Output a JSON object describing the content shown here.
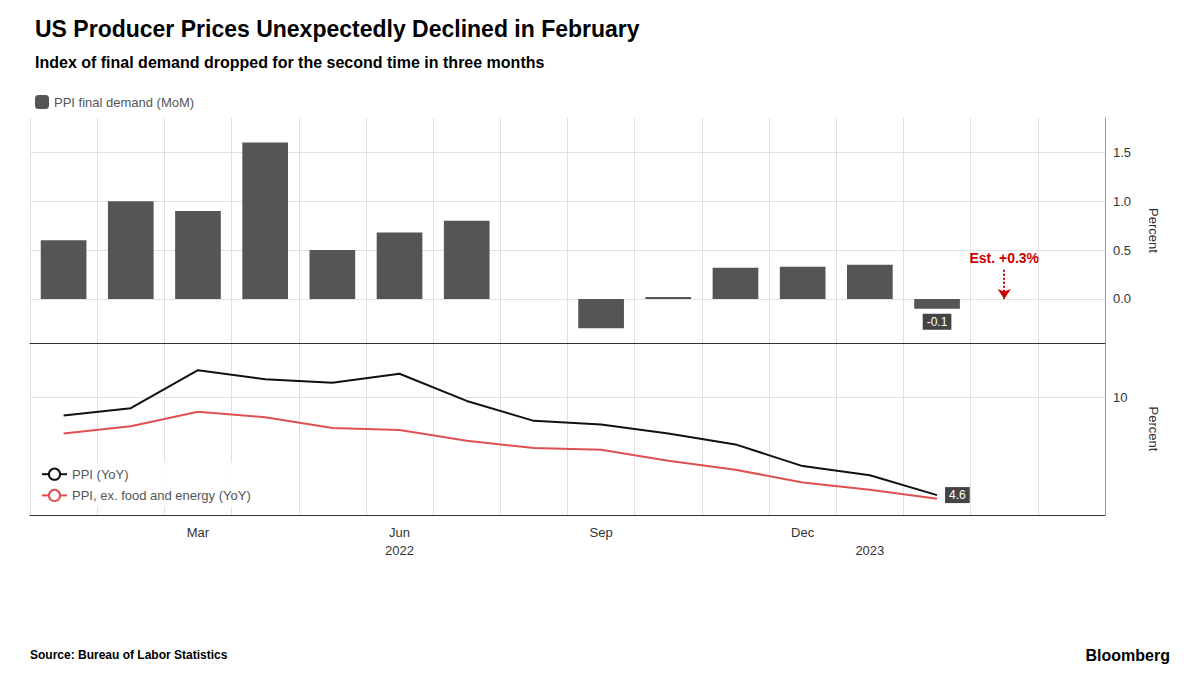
{
  "chart_data": [
    {
      "type": "bar",
      "title": "US Producer Prices Unexpectedly Declined in February",
      "subtitle": "Index of final demand dropped for the second time in three months",
      "categories": [
        null,
        null,
        "Mar",
        null,
        null,
        "Jun",
        null,
        null,
        "Sep",
        null,
        null,
        "Dec",
        null,
        null
      ],
      "series": [
        {
          "name": "PPI final demand (MoM)",
          "color": "#555555",
          "values": [
            0.6,
            1.0,
            0.9,
            1.6,
            0.5,
            0.68,
            0.8,
            0.0,
            -0.3,
            0.02,
            0.32,
            0.33,
            0.35,
            -0.1
          ],
          "end_label": "-0.1",
          "end_label_color": "#444444"
        }
      ],
      "ylabel": "Percent",
      "ylim": [
        -0.45,
        1.85
      ],
      "yticks": [
        {
          "value": 0.0,
          "label": "0.0"
        },
        0.5,
        {
          "value": 1.0,
          "label": "1.0"
        },
        1.5
      ],
      "grid": true,
      "legend": "upper left",
      "tick_labels": "y",
      "estimate": {
        "value": 0.3,
        "label": "Est. +0.3%",
        "color": "#cc0000"
      }
    },
    {
      "type": "line",
      "categories": [
        null,
        null,
        "Mar",
        null,
        null,
        "Jun",
        null,
        null,
        "Sep",
        null,
        null,
        "Dec",
        null,
        null
      ],
      "category_years": [
        null,
        null,
        null,
        null,
        null,
        "2022",
        null,
        null,
        null,
        null,
        null,
        null,
        "2023",
        null
      ],
      "series": [
        {
          "name": "PPI (YoY)",
          "color": "#111111",
          "values": [
            9.0,
            9.4,
            11.5,
            11.0,
            10.8,
            11.3,
            9.8,
            8.7,
            8.5,
            8.0,
            7.4,
            6.2,
            5.7,
            4.6
          ],
          "end_label": "4.6",
          "end_label_color": "#444444"
        },
        {
          "name": "PPI, ex. food and energy (YoY)",
          "color": "#e05050",
          "values": [
            8.0,
            8.4,
            9.2,
            8.9,
            8.3,
            8.2,
            7.6,
            7.2,
            7.1,
            6.5,
            6.0,
            5.3,
            4.9,
            4.4
          ]
        }
      ],
      "ylabel": "Percent",
      "ylim": [
        3.5,
        13.0
      ],
      "yticks": [
        10
      ],
      "grid": true,
      "legend": "lower left",
      "source": "Source: Bureau of Labor Statistics",
      "credit": "Bloomberg"
    }
  ]
}
